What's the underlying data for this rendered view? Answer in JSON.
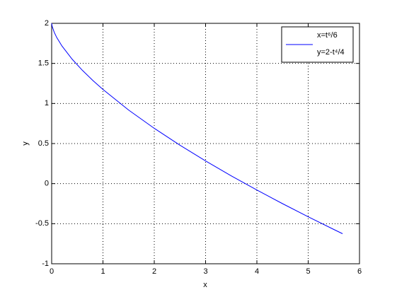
{
  "chart_data": {
    "type": "line",
    "xlabel": "x",
    "ylabel": "y",
    "x": [
      0,
      0.01,
      0.05,
      0.1,
      0.2,
      0.4,
      0.6,
      0.8,
      1,
      1.5,
      2,
      2.5,
      3,
      3.5,
      4,
      4.5,
      5,
      5.5,
      5.67
    ],
    "series": [
      {
        "name": [
          "x=t⁶/6",
          "y=2-t⁴/4"
        ],
        "color": "#0000ff",
        "values": [
          2,
          1.962,
          1.888,
          1.822,
          1.718,
          1.552,
          1.413,
          1.289,
          1.175,
          0.918,
          0.69,
          0.48,
          0.283,
          0.097,
          -0.08,
          -0.25,
          -0.414,
          -0.572,
          -0.625
        ]
      }
    ],
    "xlim": [
      0,
      6
    ],
    "xticks": [
      0,
      1,
      2,
      3,
      4,
      5,
      6
    ],
    "ylim": [
      -1,
      2
    ],
    "yticks": [
      -1,
      -0.5,
      0,
      0.5,
      1,
      1.5,
      2
    ],
    "grid": true,
    "legend": "top-right"
  }
}
